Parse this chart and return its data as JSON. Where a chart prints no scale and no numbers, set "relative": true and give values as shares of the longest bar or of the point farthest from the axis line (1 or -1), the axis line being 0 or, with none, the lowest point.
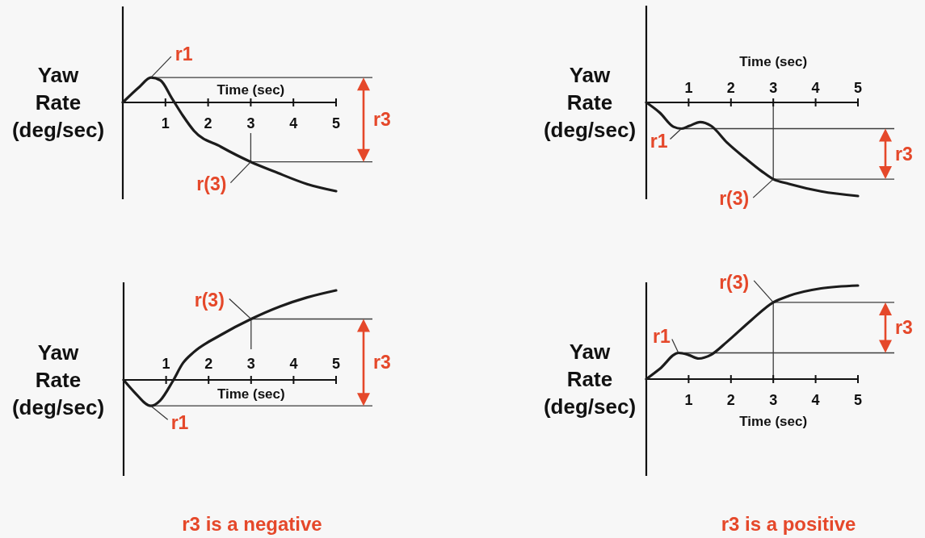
{
  "chart_data": [
    {
      "type": "line",
      "x": [
        0,
        0.4,
        0.66,
        0.88,
        1.16,
        1.41,
        1.67,
        2.3,
        3,
        3.56,
        4.32,
        5
      ],
      "values": [
        0,
        0.18,
        0.28,
        0.25,
        0.04,
        -0.15,
        -0.32,
        -0.5,
        -0.67,
        -0.78,
        -0.92,
        -1
      ],
      "color": "#1c1c1c",
      "relative": true,
      "xlabel": "Time (sec)",
      "ylabel": "Yaw\nRate\n(deg/sec)",
      "xlim": [
        0,
        5
      ],
      "xticks": [
        1,
        2,
        3,
        4,
        5
      ],
      "ref_lines": [
        {
          "axis": "y",
          "value": 0.28,
          "color": "#3c3c3c"
        },
        {
          "axis": "y",
          "value": -0.67,
          "color": "#3c3c3c"
        },
        {
          "axis": "x",
          "value": 3,
          "color": "#3c3c3c"
        }
      ],
      "annotations": [
        {
          "text": "r1",
          "x": 0.66,
          "y": 0.28
        },
        {
          "text": "r(3)",
          "x": 3,
          "y": -0.67
        },
        "r3"
      ]
    },
    {
      "type": "line",
      "x": [
        0,
        0.32,
        0.64,
        0.83,
        1.02,
        1.27,
        1.53,
        1.91,
        2.35,
        2.74,
        3,
        3.37,
        4.13,
        5
      ],
      "values": [
        0,
        -0.11,
        -0.26,
        -0.28,
        -0.25,
        -0.21,
        -0.25,
        -0.43,
        -0.6,
        -0.74,
        -0.82,
        -0.87,
        -0.95,
        -1
      ],
      "color": "#1c1c1c",
      "relative": true,
      "xlabel": "Time (sec)",
      "ylabel": "Yaw\nRate\n(deg/sec)",
      "xlim": [
        0,
        5
      ],
      "xticks": [
        1,
        2,
        3,
        4,
        5
      ],
      "ref_lines": [
        {
          "axis": "y",
          "value": -0.28,
          "color": "#3c3c3c"
        },
        {
          "axis": "y",
          "value": -0.82,
          "color": "#3c3c3c"
        },
        {
          "axis": "x",
          "value": 3,
          "color": "#3c3c3c"
        }
      ],
      "annotations": [
        {
          "text": "r1",
          "x": 0.83,
          "y": -0.28
        },
        {
          "text": "r(3)",
          "x": 3,
          "y": -0.82
        },
        "r3"
      ]
    },
    {
      "type": "line",
      "x": [
        0,
        0.26,
        0.64,
        0.86,
        1.15,
        1.4,
        1.65,
        2.28,
        3,
        3.68,
        4.31,
        5
      ],
      "values": [
        0,
        -0.14,
        -0.29,
        -0.23,
        -0.02,
        0.19,
        0.31,
        0.5,
        0.68,
        0.82,
        0.92,
        1
      ],
      "color": "#1c1c1c",
      "relative": true,
      "xlabel": "Time (sec)",
      "ylabel": "Yaw\nRate\n(deg/sec)",
      "xlim": [
        0,
        5
      ],
      "xticks": [
        1,
        2,
        3,
        4,
        5
      ],
      "ref_lines": [
        {
          "axis": "y",
          "value": -0.29,
          "color": "#3c3c3c"
        },
        {
          "axis": "y",
          "value": 0.68,
          "color": "#3c3c3c"
        },
        {
          "axis": "x",
          "value": 3,
          "color": "#3c3c3c"
        }
      ],
      "annotations": [
        {
          "text": "r1",
          "x": 0.64,
          "y": -0.29
        },
        {
          "text": "r(3)",
          "x": 3,
          "y": 0.68
        },
        "r3",
        "r3 is a negative"
      ]
    },
    {
      "type": "line",
      "x": [
        0,
        0.32,
        0.76,
        0.99,
        1.24,
        1.53,
        1.91,
        2.48,
        3,
        3.37,
        4.13,
        5
      ],
      "values": [
        0,
        0.11,
        0.28,
        0.26,
        0.22,
        0.26,
        0.4,
        0.63,
        0.82,
        0.89,
        0.97,
        1
      ],
      "color": "#1c1c1c",
      "relative": true,
      "xlabel": "Time (sec)",
      "ylabel": "Yaw\nRate\n(deg/sec)",
      "xlim": [
        0,
        5
      ],
      "xticks": [
        1,
        2,
        3,
        4,
        5
      ],
      "ref_lines": [
        {
          "axis": "y",
          "value": 0.28,
          "color": "#3c3c3c"
        },
        {
          "axis": "y",
          "value": 0.82,
          "color": "#3c3c3c"
        },
        {
          "axis": "x",
          "value": 3,
          "color": "#3c3c3c"
        }
      ],
      "annotations": [
        {
          "text": "r1",
          "x": 0.76,
          "y": 0.28
        },
        {
          "text": "r(3)",
          "x": 3,
          "y": 0.82
        },
        "r3",
        "r3 is a positive"
      ]
    }
  ]
}
